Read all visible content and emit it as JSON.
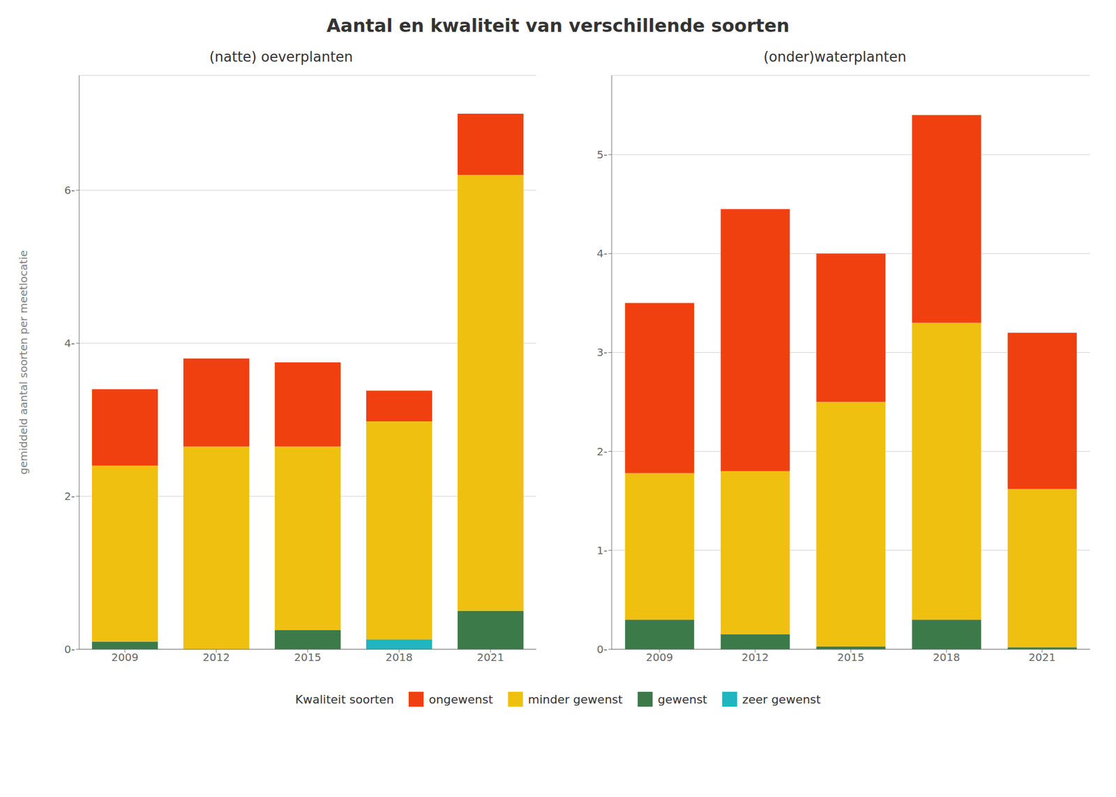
{
  "title": "Aantal en kwaliteit van verschillende soorten",
  "legend_title": "Kwaliteit soorten",
  "chart_data": [
    {
      "type": "bar",
      "title": "(natte) oeverplanten",
      "ylabel": "gemiddeld aantal soorten per meetlocatie",
      "categories": [
        "2009",
        "2012",
        "2015",
        "2018",
        "2021"
      ],
      "series": [
        {
          "name": "zeer gewenst",
          "color": "#20B5C0",
          "values": [
            0.0,
            0.0,
            0.0,
            0.13,
            0.0
          ]
        },
        {
          "name": "gewenst",
          "color": "#3D7A4A",
          "values": [
            0.1,
            0.0,
            0.25,
            0.0,
            0.5
          ]
        },
        {
          "name": "minder gewenst",
          "color": "#F0C010",
          "values": [
            2.3,
            2.65,
            2.4,
            2.85,
            5.7
          ]
        },
        {
          "name": "ongewenst",
          "color": "#F04010",
          "values": [
            1.0,
            1.15,
            1.1,
            0.4,
            0.8
          ]
        }
      ],
      "stacked": true,
      "ylim": [
        0,
        7.5
      ],
      "yticks": [
        {
          "value": 0,
          "label": "0-"
        },
        {
          "value": 2,
          "label": "2-"
        },
        {
          "value": 4,
          "label": "4-"
        },
        {
          "value": 6,
          "label": "6-"
        }
      ],
      "grid": true
    },
    {
      "type": "bar",
      "title": "(onder)waterplanten",
      "categories": [
        "2009",
        "2012",
        "2015",
        "2018",
        "2021"
      ],
      "series": [
        {
          "name": "zeer gewenst",
          "color": "#20B5C0",
          "values": [
            0.0,
            0.0,
            0.0,
            0.0,
            0.0
          ]
        },
        {
          "name": "gewenst",
          "color": "#3D7A4A",
          "values": [
            0.3,
            0.15,
            0.03,
            0.3,
            0.02
          ]
        },
        {
          "name": "minder gewenst",
          "color": "#F0C010",
          "values": [
            1.48,
            1.65,
            2.47,
            3.0,
            1.6
          ]
        },
        {
          "name": "ongewenst",
          "color": "#F04010",
          "values": [
            1.72,
            2.65,
            1.5,
            2.1,
            1.58
          ]
        }
      ],
      "stacked": true,
      "ylim": [
        0,
        5.8
      ],
      "yticks": [
        {
          "value": 0,
          "label": "0-"
        },
        {
          "value": 1,
          "label": "1-"
        },
        {
          "value": 2,
          "label": "2-"
        },
        {
          "value": 3,
          "label": "3-"
        },
        {
          "value": 4,
          "label": "4-"
        },
        {
          "value": 5,
          "label": "5-"
        }
      ],
      "grid": true
    }
  ]
}
